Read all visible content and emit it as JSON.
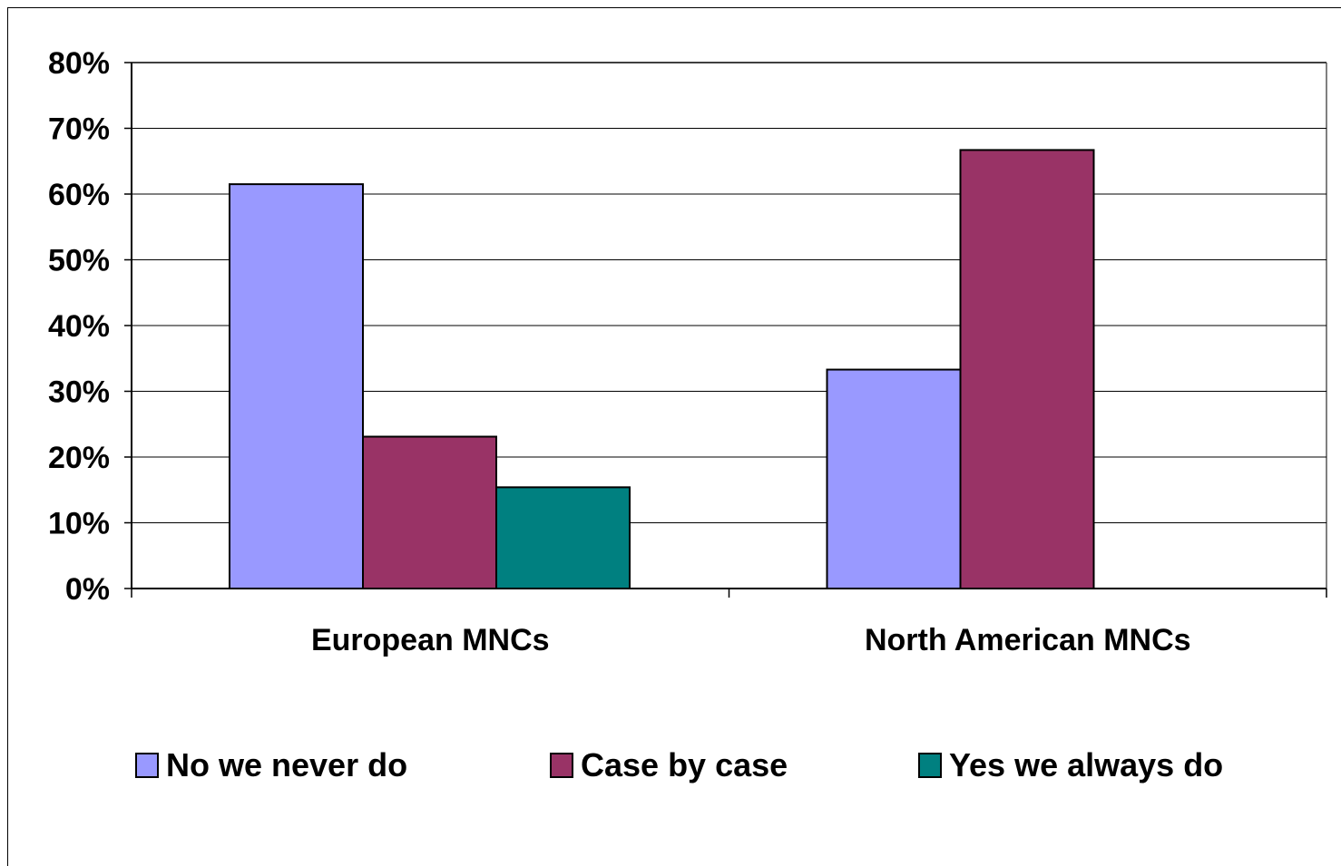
{
  "chart_data": {
    "type": "bar",
    "title": "",
    "xlabel": "",
    "ylabel": "",
    "categories": [
      "European MNCs",
      "North American MNCs"
    ],
    "series": [
      {
        "name": "No we never do",
        "values": [
          61.5,
          33.3
        ],
        "color": "#9999FF"
      },
      {
        "name": "Case by case",
        "values": [
          23.1,
          66.7
        ],
        "color": "#993366"
      },
      {
        "name": "Yes we always do",
        "values": [
          15.4,
          0
        ],
        "color": "#008080"
      }
    ],
    "ylim": [
      0,
      80
    ],
    "yticks": [
      0,
      10,
      20,
      30,
      40,
      50,
      60,
      70,
      80
    ],
    "ytick_labels": [
      "0%",
      "10%",
      "20%",
      "30%",
      "40%",
      "50%",
      "60%",
      "70%",
      "80%"
    ],
    "grid": true,
    "legend_position": "bottom"
  }
}
